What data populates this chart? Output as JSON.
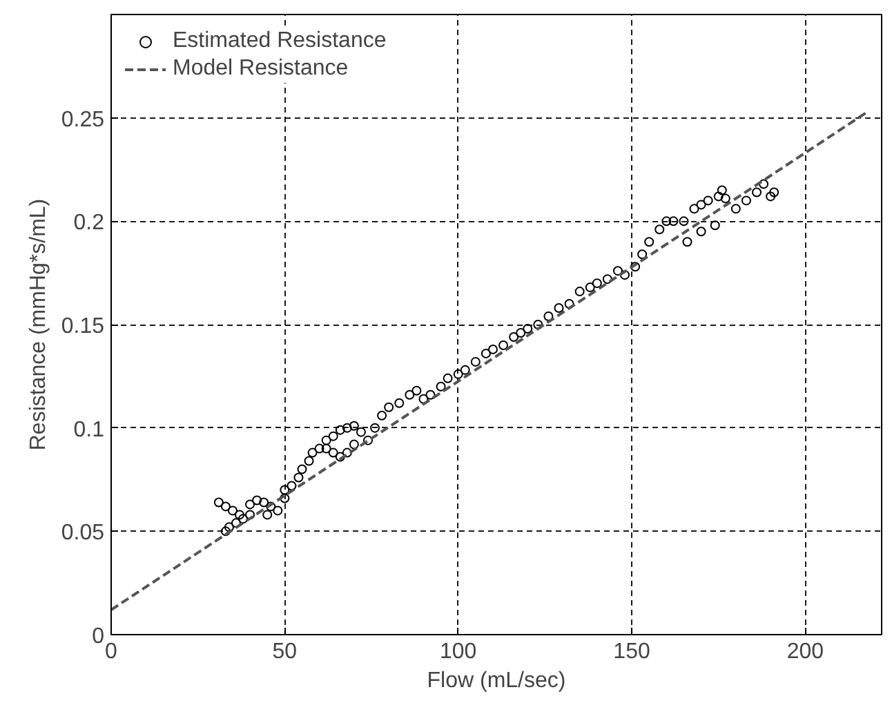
{
  "chart_data": {
    "type": "scatter",
    "xlabel": "Flow (mL/sec)",
    "ylabel": "Resistance (mmHg*s/mL)",
    "xlim": [
      0,
      222
    ],
    "ylim": [
      0,
      0.3
    ],
    "xticks": [
      0,
      50,
      100,
      150,
      200
    ],
    "yticks": [
      0,
      0.05,
      0.1,
      0.15,
      0.2,
      0.25
    ],
    "grid": true,
    "legend": "top left",
    "series": [
      {
        "name": "Estimated Resistance",
        "color": "#000000",
        "marker": "circle",
        "x": [
          31,
          33,
          35,
          37,
          33,
          34,
          36,
          38,
          40,
          40,
          42,
          44,
          46,
          45,
          48,
          50,
          50,
          52,
          54,
          55,
          57,
          58,
          60,
          62,
          64,
          66,
          68,
          70,
          72,
          70,
          68,
          66,
          64,
          62,
          74,
          76,
          78,
          80,
          83,
          86,
          88,
          90,
          92,
          95,
          97,
          100,
          102,
          105,
          108,
          110,
          113,
          116,
          118,
          120,
          123,
          126,
          129,
          132,
          135,
          138,
          140,
          143,
          146,
          148,
          151,
          153,
          155,
          158,
          160,
          162,
          165,
          168,
          170,
          172,
          175,
          176,
          177,
          174,
          170,
          166,
          180,
          183,
          186,
          188,
          190,
          191
        ],
        "values": [
          0.064,
          0.062,
          0.06,
          0.058,
          0.05,
          0.052,
          0.054,
          0.056,
          0.058,
          0.063,
          0.065,
          0.064,
          0.062,
          0.058,
          0.06,
          0.066,
          0.07,
          0.072,
          0.076,
          0.08,
          0.084,
          0.088,
          0.09,
          0.094,
          0.096,
          0.099,
          0.1,
          0.101,
          0.098,
          0.092,
          0.088,
          0.086,
          0.088,
          0.09,
          0.094,
          0.1,
          0.106,
          0.11,
          0.112,
          0.116,
          0.118,
          0.114,
          0.116,
          0.12,
          0.124,
          0.126,
          0.128,
          0.132,
          0.136,
          0.138,
          0.14,
          0.144,
          0.146,
          0.148,
          0.15,
          0.154,
          0.158,
          0.16,
          0.166,
          0.168,
          0.17,
          0.172,
          0.176,
          0.174,
          0.178,
          0.184,
          0.19,
          0.196,
          0.2,
          0.2,
          0.2,
          0.206,
          0.208,
          0.21,
          0.212,
          0.215,
          0.211,
          0.198,
          0.195,
          0.19,
          0.206,
          0.21,
          0.214,
          0.218,
          0.212,
          0.214
        ]
      },
      {
        "name": "Model Resistance",
        "color": "#555555",
        "type": "line",
        "line_style": "dashed",
        "x": [
          0,
          218
        ],
        "values": [
          0.012,
          0.253
        ]
      }
    ]
  }
}
